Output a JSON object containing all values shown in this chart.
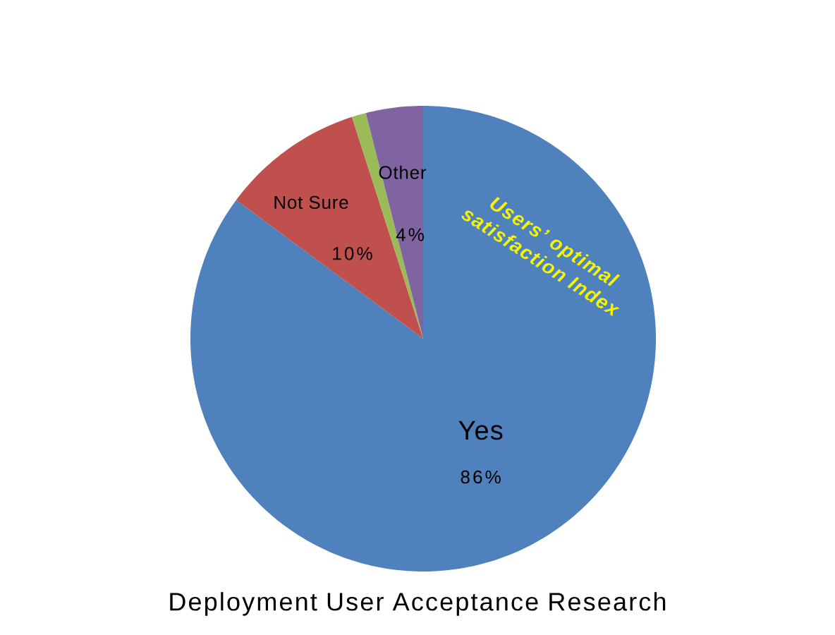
{
  "chart_data": {
    "type": "pie",
    "title": "Deployment User Acceptance Research",
    "categories": [
      "Yes",
      "Not Sure",
      null,
      "Other"
    ],
    "values": [
      86,
      10,
      1,
      4
    ],
    "value_labels": [
      "86%",
      "10%",
      null,
      "4%"
    ],
    "colors": [
      "#4f81bd",
      "#c0504d",
      "#9bbb59",
      "#8064a2"
    ],
    "annotations": [
      "Users’ optimal satisfaction Index"
    ]
  }
}
